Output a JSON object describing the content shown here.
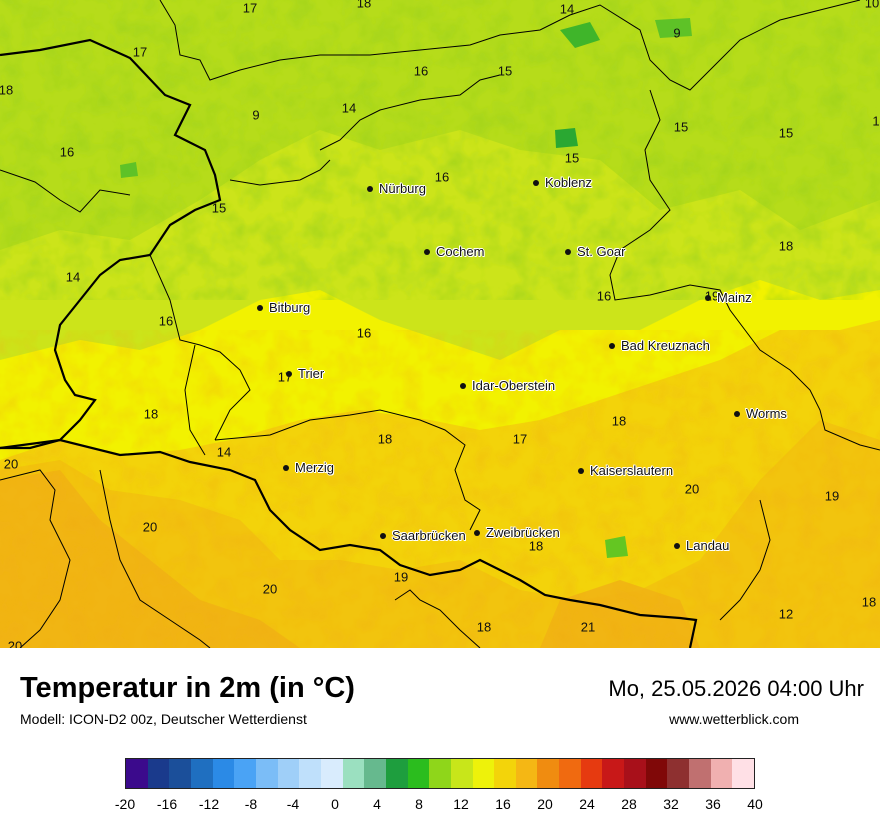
{
  "map": {
    "cities": [
      {
        "name": "Nürburg",
        "key": "nuerburg"
      },
      {
        "name": "Koblenz",
        "key": "koblenz"
      },
      {
        "name": "Cochem",
        "key": "cochem"
      },
      {
        "name": "St. Goar",
        "key": "st-goar"
      },
      {
        "name": "Mainz",
        "key": "mainz"
      },
      {
        "name": "Bitburg",
        "key": "bitburg"
      },
      {
        "name": "Bad Kreuznach",
        "key": "bad-kreuznach"
      },
      {
        "name": "Trier",
        "key": "trier"
      },
      {
        "name": "Idar-Oberstein",
        "key": "idar-oberstein"
      },
      {
        "name": "Worms",
        "key": "worms"
      },
      {
        "name": "Merzig",
        "key": "merzig"
      },
      {
        "name": "Kaiserslautern",
        "key": "kaiserslautern"
      },
      {
        "name": "Saarbrücken",
        "key": "saarbruecken"
      },
      {
        "name": "Zweibrücken",
        "key": "zweibruecken"
      },
      {
        "name": "Landau",
        "key": "landau"
      }
    ],
    "values": [
      "17",
      "18",
      "14",
      "10",
      "17",
      "9",
      "18",
      "16",
      "15",
      "9",
      "14",
      "15",
      "15",
      "1",
      "16",
      "15",
      "16",
      "15",
      "18",
      "14",
      "16",
      "16",
      "16",
      "19",
      "18",
      "17",
      "14",
      "18",
      "17",
      "18",
      "20",
      "20",
      "20",
      "19",
      "20",
      "18",
      "20",
      "18",
      "21",
      "12",
      "18",
      "19"
    ]
  },
  "footer": {
    "title": "Temperatur in 2m (in °C)",
    "model": "Modell: ICON-D2 00z, Deutscher Wetterdienst",
    "datetime": "Mo, 25.05.2026 04:00 Uhr",
    "website": "www.wetterblick.com"
  },
  "legend": {
    "colors": [
      "#3b0a8c",
      "#1a3a8c",
      "#1b4f9a",
      "#1f6fc0",
      "#2b8ae6",
      "#4aa3f5",
      "#7bbdf7",
      "#9fcff8",
      "#bfe0fb",
      "#d9ecfd",
      "#9be0c0",
      "#66b98e",
      "#1e9e3e",
      "#2bbd1e",
      "#8fd61a",
      "#c8e61a",
      "#eef20a",
      "#f3d40a",
      "#f5b714",
      "#f08c10",
      "#f06a10",
      "#e63a10",
      "#c81818",
      "#a8101a",
      "#800808",
      "#8e3030",
      "#c07070",
      "#f0b0b0",
      "#ffe0e6"
    ],
    "ticks": [
      "-20",
      "-16",
      "-12",
      "-8",
      "-4",
      "0",
      "4",
      "8",
      "12",
      "16",
      "20",
      "24",
      "28",
      "32",
      "36",
      "40"
    ]
  }
}
